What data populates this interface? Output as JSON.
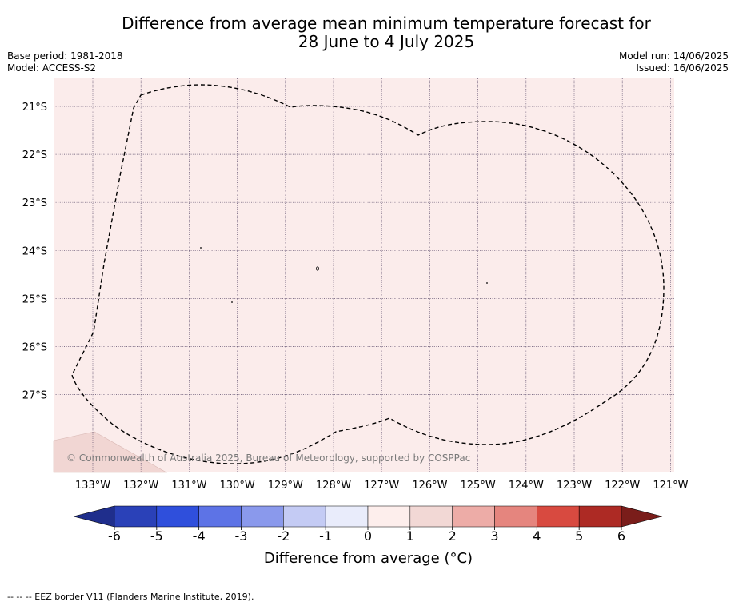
{
  "title_line1": "Difference from average mean minimum temperature forecast for",
  "title_line2": "28 June to 4 July 2025",
  "meta_left": {
    "base_period": "Base period: 1981-2018",
    "model": "Model: ACCESS-S2"
  },
  "meta_right": {
    "model_run": "Model run: 14/06/2025",
    "issued": "Issued: 16/06/2025"
  },
  "map": {
    "background_color": "#fbeceb",
    "land_color": "#f1d6d3",
    "copyright": "© Commonwealth of Australia 2025, Bureau of Meteorology, supported by COSPPac",
    "lon_labels": [
      "133°W",
      "132°W",
      "131°W",
      "130°W",
      "129°W",
      "128°W",
      "127°W",
      "126°W",
      "125°W",
      "124°W",
      "123°W",
      "122°W",
      "121°W"
    ],
    "lat_labels": [
      "21°S",
      "22°S",
      "23°S",
      "24°S",
      "25°S",
      "26°S",
      "27°S"
    ],
    "features": [
      "eez-border",
      "islands",
      "land"
    ]
  },
  "colorbar": {
    "ticks": [
      "-6",
      "-5",
      "-4",
      "-3",
      "-2",
      "-1",
      "0",
      "1",
      "2",
      "3",
      "4",
      "5",
      "6"
    ],
    "colors": [
      "#1f2e8c",
      "#2a41b8",
      "#2f4fdc",
      "#5d73e6",
      "#8a99ec",
      "#c4cbf4",
      "#e9ecfb",
      "#fdeeec",
      "#f2d8d5",
      "#edaca7",
      "#e5857e",
      "#d84a40",
      "#ad2a24",
      "#7a1d1a"
    ],
    "label": "Difference from average (°C)"
  },
  "footer": "--  --  -- EEZ border V11 (Flanders Marine Institute, 2019)."
}
